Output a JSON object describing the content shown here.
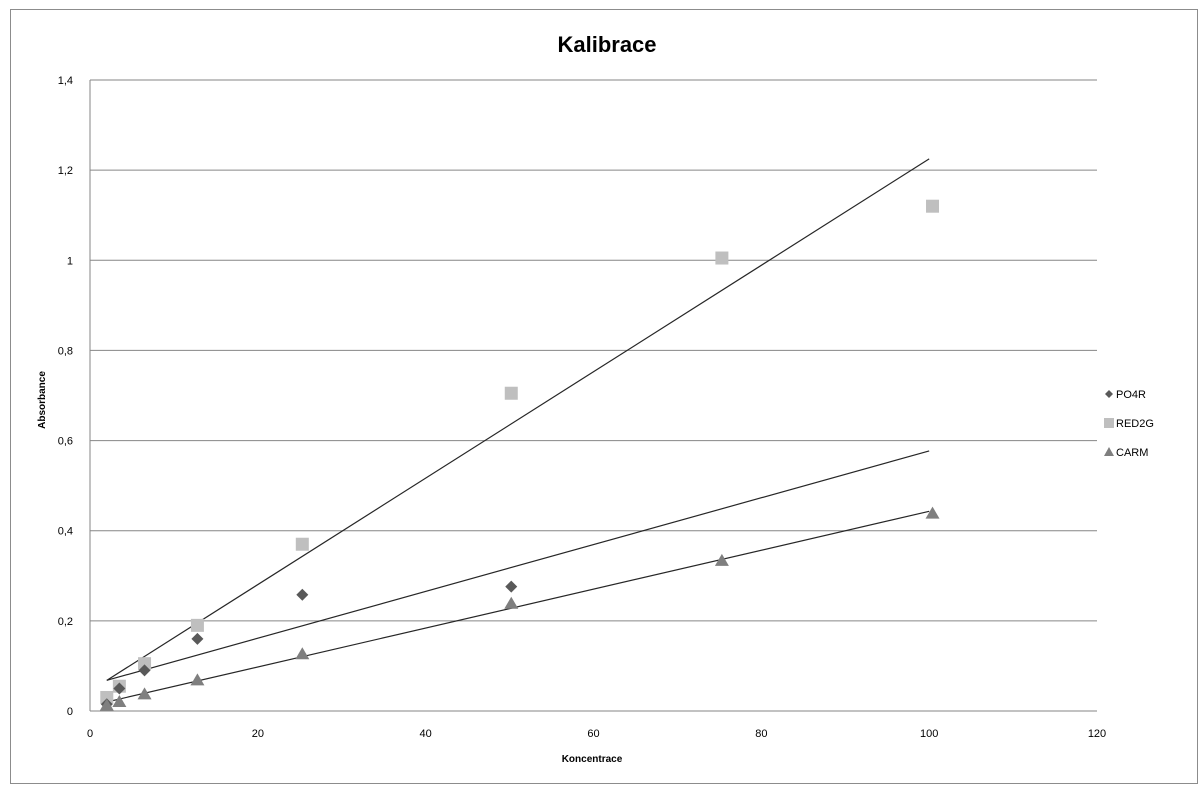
{
  "chart_data": {
    "type": "scatter",
    "title": "Kalibrace",
    "xlabel": "Koncentrace",
    "ylabel": "Absorbance",
    "xlim": [
      0,
      120
    ],
    "ylim": [
      0,
      1.4
    ],
    "x_ticks": [
      "0",
      "20",
      "40",
      "60",
      "80",
      "100",
      "120"
    ],
    "y_ticks": [
      "0",
      "0,2",
      "0,4",
      "0,6",
      "0,8",
      "1",
      "1,2",
      "1,4"
    ],
    "grid": "horizontal",
    "legend_position": "right",
    "series": [
      {
        "name": "PO4R",
        "marker": "diamond",
        "color": "#595959",
        "x": [
          2,
          3.5,
          6.5,
          12.8,
          25.3,
          50.2
        ],
        "y": [
          0.015,
          0.05,
          0.09,
          0.16,
          0.258,
          0.276
        ],
        "trendline": {
          "x": [
            2,
            100
          ],
          "y": [
            0.068,
            0.577
          ]
        }
      },
      {
        "name": "RED2G",
        "marker": "square",
        "color": "#bfbfbf",
        "x": [
          2,
          3.5,
          6.5,
          12.8,
          25.3,
          50.2,
          75.3,
          100.4
        ],
        "y": [
          0.03,
          0.055,
          0.105,
          0.19,
          0.37,
          0.705,
          1.005,
          1.12
        ],
        "trendline": {
          "x": [
            2,
            100
          ],
          "y": [
            0.068,
            1.225
          ]
        }
      },
      {
        "name": "CARM",
        "marker": "triangle",
        "color": "#7f7f7f",
        "x": [
          2,
          3.5,
          6.5,
          12.8,
          25.3,
          50.2,
          75.3,
          100.4
        ],
        "y": [
          0.012,
          0.02,
          0.037,
          0.068,
          0.126,
          0.238,
          0.333,
          0.438
        ],
        "trendline": {
          "x": [
            2,
            100
          ],
          "y": [
            0.02,
            0.443
          ]
        }
      }
    ]
  }
}
